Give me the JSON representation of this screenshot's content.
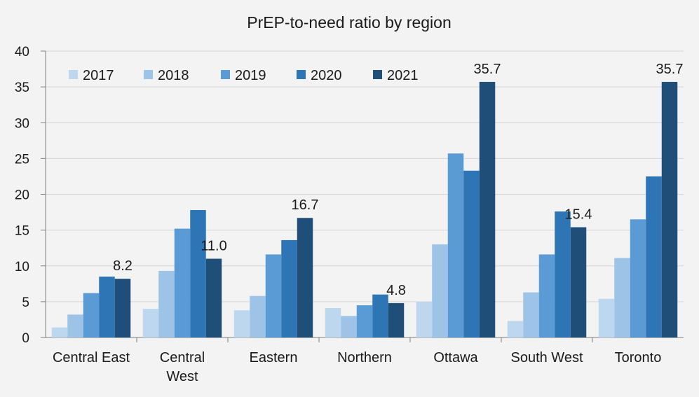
{
  "chart_data": {
    "type": "bar",
    "title": "PrEP-to-need ratio by region",
    "xlabel": "",
    "ylabel": "",
    "ylim": [
      0,
      40
    ],
    "yticks": [
      0,
      5,
      10,
      15,
      20,
      25,
      30,
      35,
      40
    ],
    "grid": true,
    "legend_position": "top-left",
    "categories": [
      [
        "Central East"
      ],
      [
        "Central",
        "West"
      ],
      [
        "Eastern"
      ],
      [
        "Northern"
      ],
      [
        "Ottawa"
      ],
      [
        "South West"
      ],
      [
        "Toronto"
      ]
    ],
    "series": [
      {
        "name": "2017",
        "color": "#bdd7ee",
        "values": [
          1.4,
          4.0,
          3.8,
          4.1,
          5.0,
          2.3,
          5.4
        ]
      },
      {
        "name": "2018",
        "color": "#9dc3e6",
        "values": [
          3.2,
          9.3,
          5.8,
          3.0,
          13.0,
          6.3,
          11.1
        ]
      },
      {
        "name": "2019",
        "color": "#5b9bd5",
        "values": [
          6.2,
          15.2,
          11.6,
          4.5,
          25.7,
          11.6,
          16.5
        ]
      },
      {
        "name": "2020",
        "color": "#2e75b6",
        "values": [
          8.5,
          17.8,
          13.6,
          6.0,
          23.3,
          17.6,
          22.5
        ]
      },
      {
        "name": "2021",
        "color": "#1f4e79",
        "values": [
          8.2,
          11.0,
          16.7,
          4.8,
          35.7,
          15.4,
          35.7
        ]
      }
    ],
    "data_labels": {
      "series": "2021",
      "texts": [
        "8.2",
        "11.0",
        "16.7",
        "4.8",
        "35.7",
        "15.4",
        "35.7"
      ]
    }
  }
}
